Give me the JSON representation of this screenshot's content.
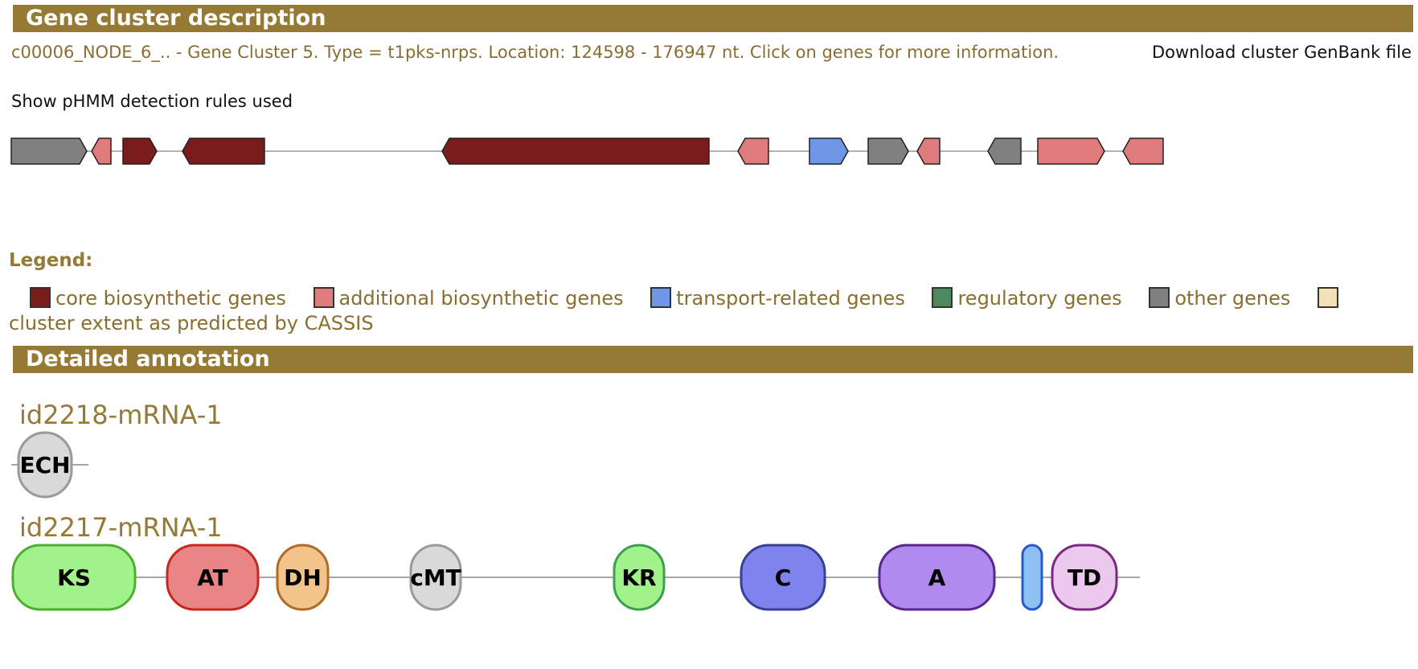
{
  "header": {
    "cluster_title": "Gene cluster description",
    "annotation_title": "Detailed annotation"
  },
  "cluster": {
    "description": "c00006_NODE_6_.. - Gene Cluster 5. Type = t1pks-nrps. Location: 124598 - 176947 nt. Click on genes for more information.",
    "download_label": "Download cluster GenBank file",
    "rules_label": "Show pHMM detection rules used",
    "gene_colors": {
      "core": "#7a1c1c",
      "additional": "#e07b7b",
      "transport": "#6f96e6",
      "regulatory": "#4c8a5e",
      "other": "#808080",
      "cassis": "#f3e0b5"
    }
  },
  "legend": {
    "title": "Legend:",
    "items": [
      {
        "label": "core biosynthetic genes",
        "color": "#7a1c1c"
      },
      {
        "label": "additional biosynthetic genes",
        "color": "#e07b7b"
      },
      {
        "label": "transport-related genes",
        "color": "#6f96e6"
      },
      {
        "label": "regulatory genes",
        "color": "#4c8a5e"
      },
      {
        "label": "other genes",
        "color": "#808080"
      },
      {
        "label": "cluster extent as predicted by CASSIS",
        "color": "#f3e0b5"
      }
    ]
  },
  "genes": [
    {
      "name": "id2218-mRNA-1",
      "domains": [
        {
          "label": "ECH",
          "fill": "#d9d9d9",
          "stroke": "#999999"
        }
      ]
    },
    {
      "name": "id2217-mRNA-1",
      "domains": [
        {
          "label": "KS",
          "fill": "#a2f28c",
          "stroke": "#4caf30"
        },
        {
          "label": "AT",
          "fill": "#ea8585",
          "stroke": "#c8261e"
        },
        {
          "label": "DH",
          "fill": "#f2c48c",
          "stroke": "#b26a28"
        },
        {
          "label": "cMT",
          "fill": "#d9d9d9",
          "stroke": "#9a9a9a"
        },
        {
          "label": "KR",
          "fill": "#a2f28c",
          "stroke": "#3aa04a"
        },
        {
          "label": "C",
          "fill": "#7f83ee",
          "stroke": "#3a3f96"
        },
        {
          "label": "A",
          "fill": "#b08aee",
          "stroke": "#5b2590"
        },
        {
          "label": "",
          "fill": "#8ec0f2",
          "stroke": "#2659c9"
        },
        {
          "label": "TD",
          "fill": "#ecc8ee",
          "stroke": "#7a2a80"
        }
      ]
    }
  ]
}
